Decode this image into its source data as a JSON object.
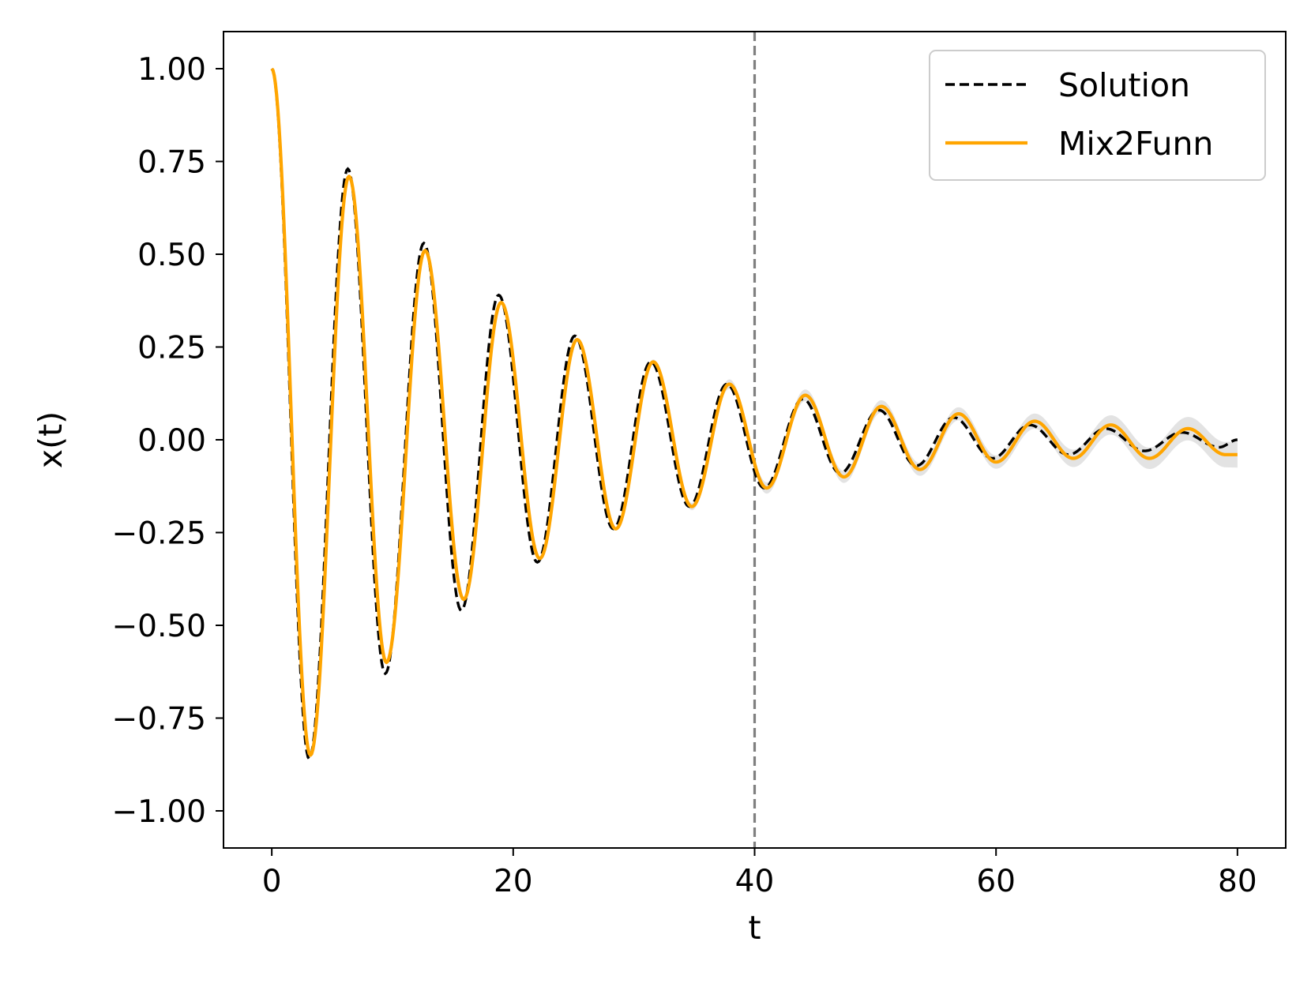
{
  "chart_data": {
    "type": "line",
    "title": "",
    "xlabel": "t",
    "ylabel": "x(t)",
    "xlim": [
      -4,
      84
    ],
    "ylim": [
      -1.1,
      1.1
    ],
    "xticks": [
      0,
      20,
      40,
      60,
      80
    ],
    "xtick_labels": [
      "0",
      "20",
      "40",
      "60",
      "80"
    ],
    "yticks": [
      1.0,
      0.75,
      0.5,
      0.25,
      0.0,
      -0.25,
      -0.5,
      -0.75,
      -1.0
    ],
    "ytick_labels": [
      "1.00",
      "0.75",
      "0.50",
      "0.25",
      "0.00",
      "−0.25",
      "−0.50",
      "−0.75",
      "−1.00"
    ],
    "grid": false,
    "legend_position": "top-right",
    "vertical_line": {
      "x": 40,
      "style": "dashed",
      "color": "#808080"
    },
    "series": [
      {
        "name": "Solution",
        "style": "dashed",
        "color": "#000000",
        "function": "exp(-0.05 t) cos(t)",
        "x_range": [
          0,
          80
        ],
        "extrema": [
          {
            "x": 0,
            "y": 1.0
          },
          {
            "x": 3.1,
            "y": -0.86
          },
          {
            "x": 6.3,
            "y": 0.73
          },
          {
            "x": 9.4,
            "y": -0.63
          },
          {
            "x": 12.6,
            "y": 0.53
          },
          {
            "x": 15.7,
            "y": -0.46
          },
          {
            "x": 18.8,
            "y": 0.39
          },
          {
            "x": 22.0,
            "y": -0.33
          },
          {
            "x": 25.1,
            "y": 0.28
          },
          {
            "x": 28.3,
            "y": -0.24
          },
          {
            "x": 31.4,
            "y": 0.21
          },
          {
            "x": 34.6,
            "y": -0.18
          },
          {
            "x": 37.7,
            "y": 0.15
          },
          {
            "x": 40.8,
            "y": -0.13
          },
          {
            "x": 44.0,
            "y": 0.11
          },
          {
            "x": 47.1,
            "y": -0.09
          },
          {
            "x": 50.3,
            "y": 0.08
          },
          {
            "x": 53.4,
            "y": -0.07
          },
          {
            "x": 56.5,
            "y": 0.06
          },
          {
            "x": 59.7,
            "y": -0.05
          },
          {
            "x": 62.8,
            "y": 0.04
          },
          {
            "x": 66.0,
            "y": -0.04
          },
          {
            "x": 69.1,
            "y": 0.03
          },
          {
            "x": 72.3,
            "y": -0.03
          },
          {
            "x": 75.4,
            "y": 0.02
          },
          {
            "x": 78.5,
            "y": -0.02
          },
          {
            "x": 80,
            "y": 0.0
          }
        ]
      },
      {
        "name": "Mix2Funn",
        "style": "solid",
        "color": "#ffa500",
        "x_range": [
          0,
          80
        ],
        "extrema": [
          {
            "x": 0,
            "y": 1.0
          },
          {
            "x": 3.2,
            "y": -0.85
          },
          {
            "x": 6.4,
            "y": 0.71
          },
          {
            "x": 9.5,
            "y": -0.6
          },
          {
            "x": 12.7,
            "y": 0.51
          },
          {
            "x": 15.9,
            "y": -0.43
          },
          {
            "x": 19.0,
            "y": 0.37
          },
          {
            "x": 22.2,
            "y": -0.32
          },
          {
            "x": 25.3,
            "y": 0.27
          },
          {
            "x": 28.5,
            "y": -0.24
          },
          {
            "x": 31.6,
            "y": 0.21
          },
          {
            "x": 34.8,
            "y": -0.18
          },
          {
            "x": 37.9,
            "y": 0.15
          },
          {
            "x": 41.0,
            "y": -0.13
          },
          {
            "x": 44.2,
            "y": 0.12
          },
          {
            "x": 47.4,
            "y": -0.1
          },
          {
            "x": 50.5,
            "y": 0.09
          },
          {
            "x": 53.7,
            "y": -0.08
          },
          {
            "x": 56.9,
            "y": 0.07
          },
          {
            "x": 60.0,
            "y": -0.06
          },
          {
            "x": 63.2,
            "y": 0.05
          },
          {
            "x": 66.4,
            "y": -0.05
          },
          {
            "x": 69.5,
            "y": 0.04
          },
          {
            "x": 72.7,
            "y": -0.05
          },
          {
            "x": 75.9,
            "y": 0.03
          },
          {
            "x": 79.0,
            "y": -0.04
          },
          {
            "x": 80,
            "y": -0.04
          }
        ],
        "uncertainty_band": {
          "color": "#cccccc",
          "halfwidth_by_x": [
            [
              0,
              0.0
            ],
            [
              30,
              0.005
            ],
            [
              40,
              0.015
            ],
            [
              60,
              0.018
            ],
            [
              80,
              0.035
            ]
          ]
        }
      }
    ]
  }
}
